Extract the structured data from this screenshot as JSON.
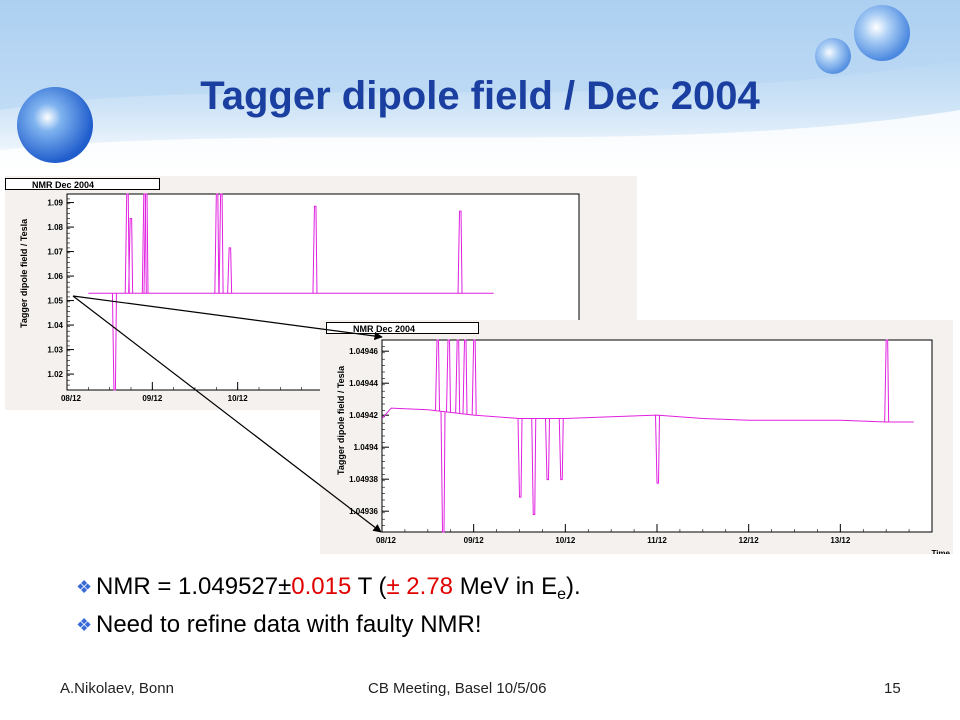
{
  "slide": {
    "title": "Tagger dipole field / Dec 2004",
    "footer_left": "A.Nikolaev, Bonn",
    "footer_center": "CB Meeting, Basel 10/5/06",
    "footer_right": "15"
  },
  "bullets": [
    {
      "prefix": "NMR = 1.049527±",
      "red1": "0.015",
      "mid": " T (",
      "red2": "± 2.78",
      "suffix_before_sub": " MeV in E",
      "sub": "e",
      "suffix": ")."
    },
    {
      "text": "Need to refine data with faulty NMR!"
    }
  ],
  "colors": {
    "title": "#1a3fa0",
    "series": "#e020e0",
    "highlight": "#e00000",
    "bullet": "#3a6bd4"
  },
  "chart_data": [
    {
      "type": "line",
      "title": "NMR Dec 2004",
      "ylabel": "Tagger dipole field / Tesla",
      "xlabel": "",
      "xlim": [
        8,
        14
      ],
      "ylim": [
        1.01,
        1.09
      ],
      "yticks": [
        "1.09",
        "1.08",
        "1.07",
        "1.06",
        "1.05",
        "1.04",
        "1.03",
        "1.02"
      ],
      "xticks": [
        "08/12",
        "09/12",
        "10/12"
      ],
      "baseline": 1.0495,
      "spikes": [
        {
          "x": 8.55,
          "y": 1.0
        },
        {
          "x": 8.7,
          "y": 1.09
        },
        {
          "x": 8.74,
          "y": 1.08
        },
        {
          "x": 8.9,
          "y": 1.09
        },
        {
          "x": 8.92,
          "y": 1.09
        },
        {
          "x": 9.75,
          "y": 1.09
        },
        {
          "x": 9.8,
          "y": 1.09
        },
        {
          "x": 9.9,
          "y": 1.068
        },
        {
          "x": 10.9,
          "y": 1.085
        },
        {
          "x": 12.6,
          "y": 1.083
        }
      ]
    },
    {
      "type": "line",
      "title": "NMR Dec 2004",
      "ylabel": "Tagger dipole field / Tesla",
      "xlabel": "Time",
      "xlim": [
        8,
        14
      ],
      "ylim": [
        1.04936,
        1.04947
      ],
      "yticks": [
        "1.04946",
        "1.04944",
        "1.04942",
        "1.0494",
        "1.04938",
        "1.04936"
      ],
      "xticks": [
        "08/12",
        "09/12",
        "10/12",
        "11/12",
        "12/12",
        "13/12"
      ],
      "baseline": [
        {
          "x": 8.0,
          "y": 1.049425
        },
        {
          "x": 8.1,
          "y": 1.049431
        },
        {
          "x": 8.5,
          "y": 1.04943
        },
        {
          "x": 9.0,
          "y": 1.049427
        },
        {
          "x": 9.5,
          "y": 1.049425
        },
        {
          "x": 10.0,
          "y": 1.049425
        },
        {
          "x": 10.5,
          "y": 1.049426
        },
        {
          "x": 11.0,
          "y": 1.049427
        },
        {
          "x": 11.5,
          "y": 1.049425
        },
        {
          "x": 12.0,
          "y": 1.049424
        },
        {
          "x": 12.5,
          "y": 1.049424
        },
        {
          "x": 13.0,
          "y": 1.049424
        },
        {
          "x": 13.5,
          "y": 1.049423
        },
        {
          "x": 13.8,
          "y": 1.049423
        }
      ],
      "spikes": [
        {
          "x": 8.6,
          "y": 1.04947
        },
        {
          "x": 8.66,
          "y": 1.04936
        },
        {
          "x": 8.72,
          "y": 1.04947
        },
        {
          "x": 8.82,
          "y": 1.04947
        },
        {
          "x": 8.9,
          "y": 1.04947
        },
        {
          "x": 9.0,
          "y": 1.04947
        },
        {
          "x": 9.5,
          "y": 1.04938
        },
        {
          "x": 9.65,
          "y": 1.04937
        },
        {
          "x": 9.8,
          "y": 1.04939
        },
        {
          "x": 9.95,
          "y": 1.04939
        },
        {
          "x": 11.0,
          "y": 1.049388
        },
        {
          "x": 13.5,
          "y": 1.04947
        }
      ]
    }
  ]
}
